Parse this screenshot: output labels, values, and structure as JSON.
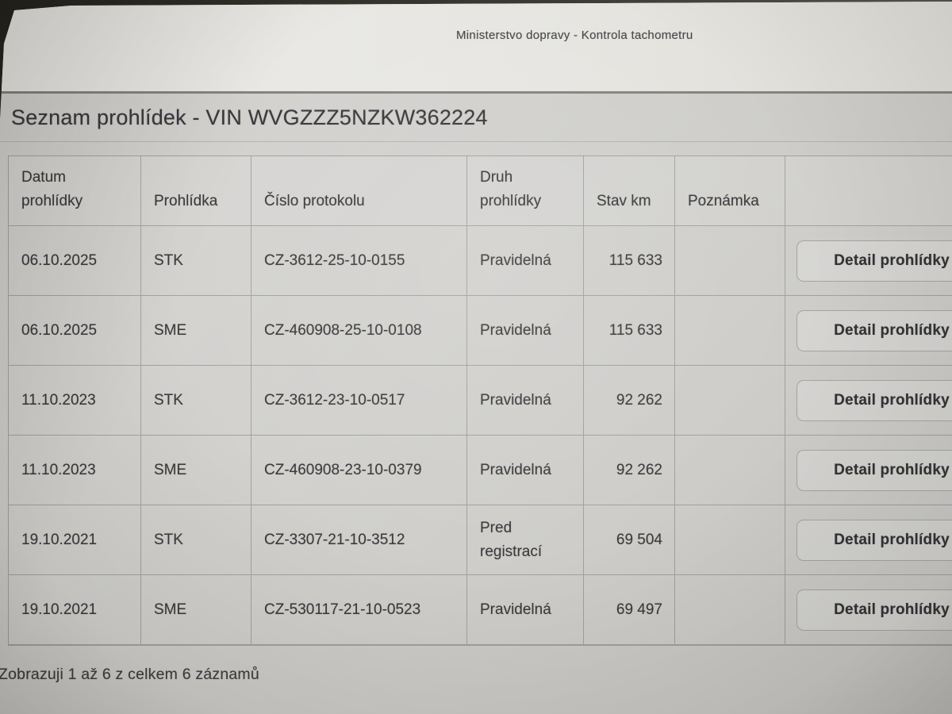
{
  "window": {
    "top_label": "Ministerstvo dopravy - Kontrola tachometru"
  },
  "page": {
    "title": "Seznam prohlídek - VIN WVGZZZ5NZKW362224",
    "footer": "Zobrazuji 1 až 6 z celkem 6 záznamů"
  },
  "table": {
    "columns": [
      "Datum prohlídky",
      "Prohlídka",
      "Číslo protokolu",
      "Druh prohlídky",
      "Stav km",
      "Poznámka",
      ""
    ],
    "detail_button_label": "Detail prohlídky",
    "rows": [
      {
        "datum": "06.10.2025",
        "prohlidka": "STK",
        "protokol": "CZ-3612-25-10-0155",
        "druh": "Pravidelná",
        "stav_km": "115 633",
        "poznamka": ""
      },
      {
        "datum": "06.10.2025",
        "prohlidka": "SME",
        "protokol": "CZ-460908-25-10-0108",
        "druh": "Pravidelná",
        "stav_km": "115 633",
        "poznamka": ""
      },
      {
        "datum": "11.10.2023",
        "prohlidka": "STK",
        "protokol": "CZ-3612-23-10-0517",
        "druh": "Pravidelná",
        "stav_km": "92 262",
        "poznamka": ""
      },
      {
        "datum": "11.10.2023",
        "prohlidka": "SME",
        "protokol": "CZ-460908-23-10-0379",
        "druh": "Pravidelná",
        "stav_km": "92 262",
        "poznamka": ""
      },
      {
        "datum": "19.10.2021",
        "prohlidka": "STK",
        "protokol": "CZ-3307-21-10-3512",
        "druh": "Pred registrací",
        "stav_km": "69 504",
        "poznamka": ""
      },
      {
        "datum": "19.10.2021",
        "prohlidka": "SME",
        "protokol": "CZ-530117-21-10-0523",
        "druh": "Pravidelná",
        "stav_km": "69 497",
        "poznamka": ""
      }
    ]
  },
  "colors": {
    "page_bg": "#cfcecb",
    "topbar_bg": "#e7e6e2",
    "separator": "#858480",
    "table_line": "#8a8985",
    "text": "#3b3b3d",
    "button_border": "#a5a4a0"
  }
}
